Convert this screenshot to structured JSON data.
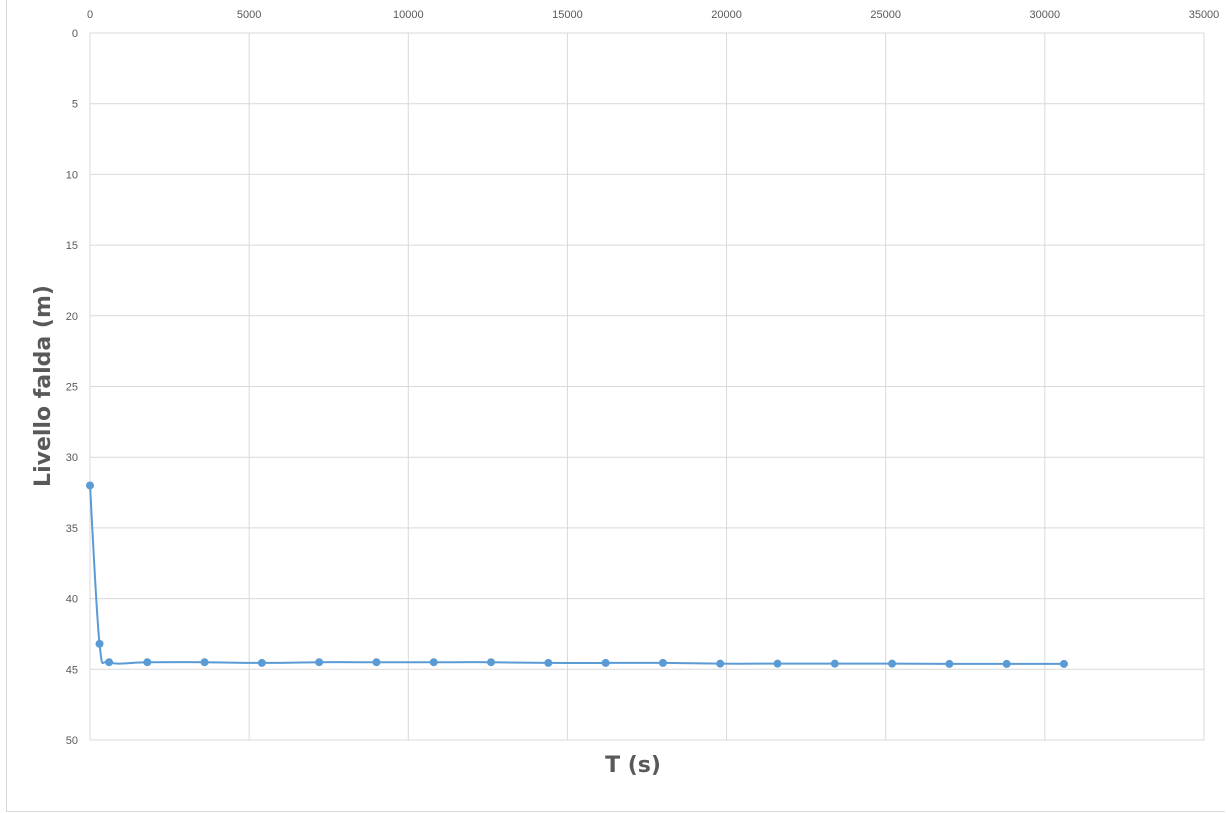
{
  "chart_data": {
    "type": "scatter",
    "title": "",
    "xlabel": "T (s)",
    "ylabel": "Livello falda (m)",
    "xlim": [
      0,
      35000
    ],
    "ylim": [
      0,
      50
    ],
    "y_inverted": true,
    "x_axis_position": "top",
    "x_ticks": [
      0,
      5000,
      10000,
      15000,
      20000,
      25000,
      30000,
      35000
    ],
    "y_ticks": [
      0,
      5,
      10,
      15,
      20,
      25,
      30,
      35,
      40,
      45,
      50
    ],
    "grid": true,
    "line_style": "smooth",
    "series": [
      {
        "color": "#5b9bd5",
        "x": [
          0,
          300,
          600,
          1800,
          3600,
          5400,
          7200,
          9000,
          10800,
          12600,
          14400,
          16200,
          18000,
          19800,
          21600,
          23400,
          25200,
          27000,
          28800,
          30600
        ],
        "y": [
          32.0,
          43.2,
          44.5,
          44.5,
          44.5,
          44.55,
          44.5,
          44.5,
          44.5,
          44.5,
          44.55,
          44.55,
          44.55,
          44.6,
          44.6,
          44.6,
          44.6,
          44.62,
          44.62,
          44.62
        ]
      }
    ]
  }
}
